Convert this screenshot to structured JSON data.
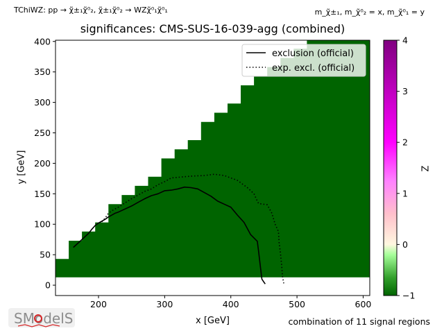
{
  "header": {
    "top_left": "TChiWZ: pp → χ̃±₁χ̃⁰₂, χ̃±₁χ̃⁰₂ → WZχ̃⁰₁χ̃⁰₁",
    "top_right": "m_χ̃±₁, m_χ̃⁰₂ = x, m_χ̃⁰₁ = y"
  },
  "footer": {
    "note": "combination of 11 signal regions",
    "logo_text": "SModelS"
  },
  "colors": {
    "fill": "#006400",
    "exclusion": "#000000",
    "colorbar": [
      "#006400",
      "#33a02c",
      "#a6ff9a",
      "#fff7e0",
      "#ffc0cb",
      "#ff80ff",
      "#ff00ff",
      "#800080"
    ]
  },
  "chart_data": {
    "type": "heatmap",
    "title": "significances: CMS-SUS-16-039-agg (combined)",
    "xlabel": "x [GeV]",
    "ylabel": "y [GeV]",
    "zlabel": "Z",
    "xlim": [
      135,
      610
    ],
    "ylim": [
      -17,
      402
    ],
    "xticks": [
      200,
      300,
      400,
      500,
      600
    ],
    "yticks": [
      0,
      50,
      100,
      150,
      200,
      250,
      300,
      350,
      400
    ],
    "zlim": [
      -1,
      4
    ],
    "zticks": [
      -1,
      0,
      1,
      2,
      3,
      4
    ],
    "grid": false,
    "legend_position": "top-right",
    "region_boundary": {
      "x": [
        135,
        135,
        155,
        155,
        175,
        175,
        195,
        195,
        215,
        215,
        235,
        235,
        255,
        255,
        275,
        275,
        295,
        295,
        315,
        315,
        335,
        335,
        355,
        355,
        375,
        375,
        395,
        395,
        415,
        415,
        435,
        435,
        455,
        455,
        475,
        475,
        495,
        495,
        515,
        515,
        610,
        610
      ],
      "y": [
        13,
        43,
        43,
        73,
        73,
        88,
        88,
        103,
        103,
        133,
        133,
        148,
        148,
        163,
        163,
        178,
        178,
        208,
        208,
        223,
        223,
        238,
        238,
        268,
        268,
        283,
        283,
        298,
        298,
        328,
        328,
        343,
        343,
        358,
        358,
        373,
        373,
        388,
        388,
        402,
        402,
        13
      ]
    },
    "region_value": -1,
    "series": [
      {
        "name": "exclusion (official)",
        "style": "solid",
        "x": [
          162,
          170,
          175,
          180,
          185,
          190,
          195,
          200,
          210,
          215,
          220,
          225,
          230,
          240,
          250,
          260,
          270,
          280,
          290,
          300,
          310,
          320,
          330,
          340,
          350,
          360,
          370,
          380,
          390,
          400,
          410,
          420,
          430,
          440,
          442,
          445,
          447,
          450,
          452
        ],
        "y": [
          62,
          70,
          75,
          80,
          85,
          92,
          98,
          102,
          108,
          112,
          115,
          118,
          120,
          125,
          130,
          136,
          142,
          147,
          150,
          155,
          156,
          158,
          161,
          160,
          158,
          152,
          146,
          138,
          133,
          128,
          115,
          103,
          83,
          72,
          55,
          28,
          10,
          5,
          2
        ]
      },
      {
        "name": "exp. excl. (official)",
        "style": "dotted",
        "x": [
          205,
          210,
          215,
          220,
          230,
          240,
          250,
          260,
          270,
          280,
          290,
          300,
          310,
          320,
          340,
          360,
          375,
          390,
          410,
          425,
          435,
          440,
          442,
          455,
          462,
          467,
          472,
          473,
          475,
          477,
          478,
          480
        ],
        "y": [
          104,
          110,
          118,
          122,
          128,
          135,
          142,
          148,
          154,
          158,
          165,
          170,
          176,
          177,
          179,
          180,
          182,
          180,
          172,
          160,
          150,
          138,
          134,
          132,
          118,
          100,
          88,
          70,
          52,
          30,
          15,
          3
        ]
      }
    ]
  }
}
